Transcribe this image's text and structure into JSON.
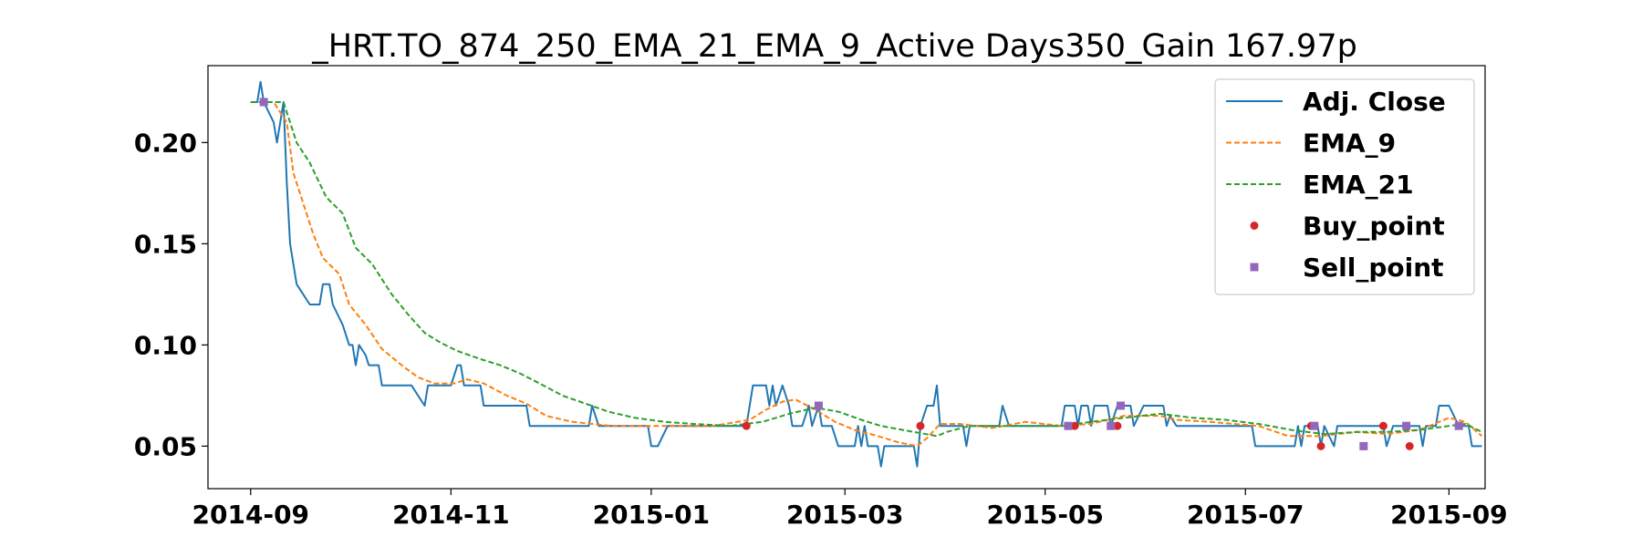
{
  "chart_data": {
    "type": "line",
    "title": "_HRT.TO_874_250_EMA_21_EMA_9_Active Days350_Gain 167.97p",
    "xlabel": "",
    "ylabel": "",
    "xlim": [
      "2014-08-19",
      "2015-09-12"
    ],
    "ylim": [
      0.029,
      0.238
    ],
    "x_ticks": [
      "2014-09-01",
      "2014-11-01",
      "2015-01-01",
      "2015-03-01",
      "2015-05-01",
      "2015-07-01",
      "2015-09-01"
    ],
    "x_tick_labels": [
      "2014-09",
      "2014-11",
      "2015-01",
      "2015-03",
      "2015-05",
      "2015-07",
      "2015-09"
    ],
    "y_ticks": [
      0.05,
      0.1,
      0.15,
      0.2
    ],
    "y_tick_labels": [
      "0.05",
      "0.10",
      "0.15",
      "0.20"
    ],
    "grid": false,
    "legend_position": "top-right",
    "colors": {
      "adj_close": "#1f77b4",
      "ema_9": "#ff7f0e",
      "ema_21": "#2ca02c",
      "buy": "#d62728",
      "sell": "#9467bd"
    },
    "series": [
      {
        "name": "Adj. Close",
        "style": "solid",
        "points": [
          [
            "2014-09-01",
            0.22
          ],
          [
            "2014-09-03",
            0.22
          ],
          [
            "2014-09-04",
            0.23
          ],
          [
            "2014-09-05",
            0.22
          ],
          [
            "2014-09-08",
            0.21
          ],
          [
            "2014-09-09",
            0.2
          ],
          [
            "2014-09-10",
            0.21
          ],
          [
            "2014-09-11",
            0.22
          ],
          [
            "2014-09-12",
            0.18
          ],
          [
            "2014-09-13",
            0.15
          ],
          [
            "2014-09-15",
            0.13
          ],
          [
            "2014-09-17",
            0.125
          ],
          [
            "2014-09-19",
            0.12
          ],
          [
            "2014-09-22",
            0.12
          ],
          [
            "2014-09-23",
            0.13
          ],
          [
            "2014-09-25",
            0.13
          ],
          [
            "2014-09-26",
            0.12
          ],
          [
            "2014-09-29",
            0.11
          ],
          [
            "2014-10-01",
            0.1
          ],
          [
            "2014-10-02",
            0.1
          ],
          [
            "2014-10-03",
            0.09
          ],
          [
            "2014-10-04",
            0.1
          ],
          [
            "2014-10-06",
            0.095
          ],
          [
            "2014-10-07",
            0.09
          ],
          [
            "2014-10-10",
            0.09
          ],
          [
            "2014-10-11",
            0.08
          ],
          [
            "2014-10-20",
            0.08
          ],
          [
            "2014-10-24",
            0.07
          ],
          [
            "2014-10-25",
            0.08
          ],
          [
            "2014-11-01",
            0.08
          ],
          [
            "2014-11-03",
            0.09
          ],
          [
            "2014-11-04",
            0.09
          ],
          [
            "2014-11-05",
            0.08
          ],
          [
            "2014-11-10",
            0.08
          ],
          [
            "2014-11-11",
            0.07
          ],
          [
            "2014-11-24",
            0.07
          ],
          [
            "2014-11-25",
            0.06
          ],
          [
            "2014-12-13",
            0.06
          ],
          [
            "2014-12-14",
            0.07
          ],
          [
            "2014-12-16",
            0.06
          ],
          [
            "2014-12-31",
            0.06
          ],
          [
            "2015-01-01",
            0.05
          ],
          [
            "2015-01-03",
            0.05
          ],
          [
            "2015-01-06",
            0.06
          ],
          [
            "2015-01-20",
            0.06
          ],
          [
            "2015-01-30",
            0.06
          ],
          [
            "2015-02-01",
            0.08
          ],
          [
            "2015-02-05",
            0.08
          ],
          [
            "2015-02-06",
            0.07
          ],
          [
            "2015-02-07",
            0.08
          ],
          [
            "2015-02-08",
            0.07
          ],
          [
            "2015-02-10",
            0.08
          ],
          [
            "2015-02-12",
            0.07
          ],
          [
            "2015-02-13",
            0.06
          ],
          [
            "2015-02-16",
            0.06
          ],
          [
            "2015-02-18",
            0.07
          ],
          [
            "2015-02-19",
            0.06
          ],
          [
            "2015-02-21",
            0.07
          ],
          [
            "2015-02-22",
            0.06
          ],
          [
            "2015-02-25",
            0.06
          ],
          [
            "2015-02-27",
            0.05
          ],
          [
            "2015-03-04",
            0.05
          ],
          [
            "2015-03-05",
            0.06
          ],
          [
            "2015-03-06",
            0.05
          ],
          [
            "2015-03-07",
            0.06
          ],
          [
            "2015-03-08",
            0.05
          ],
          [
            "2015-03-11",
            0.05
          ],
          [
            "2015-03-12",
            0.04
          ],
          [
            "2015-03-13",
            0.05
          ],
          [
            "2015-03-22",
            0.05
          ],
          [
            "2015-03-23",
            0.04
          ],
          [
            "2015-03-24",
            0.06
          ],
          [
            "2015-03-26",
            0.07
          ],
          [
            "2015-03-28",
            0.07
          ],
          [
            "2015-03-29",
            0.08
          ],
          [
            "2015-03-30",
            0.06
          ],
          [
            "2015-04-06",
            0.06
          ],
          [
            "2015-04-07",
            0.05
          ],
          [
            "2015-04-08",
            0.06
          ],
          [
            "2015-04-17",
            0.06
          ],
          [
            "2015-04-18",
            0.07
          ],
          [
            "2015-04-20",
            0.06
          ],
          [
            "2015-05-06",
            0.06
          ],
          [
            "2015-05-07",
            0.07
          ],
          [
            "2015-05-10",
            0.07
          ],
          [
            "2015-05-11",
            0.06
          ],
          [
            "2015-05-12",
            0.07
          ],
          [
            "2015-05-14",
            0.07
          ],
          [
            "2015-05-15",
            0.06
          ],
          [
            "2015-05-16",
            0.07
          ],
          [
            "2015-05-20",
            0.07
          ],
          [
            "2015-05-21",
            0.06
          ],
          [
            "2015-05-23",
            0.07
          ],
          [
            "2015-05-27",
            0.07
          ],
          [
            "2015-05-28",
            0.06
          ],
          [
            "2015-05-31",
            0.07
          ],
          [
            "2015-06-06",
            0.07
          ],
          [
            "2015-06-07",
            0.06
          ],
          [
            "2015-06-08",
            0.065
          ],
          [
            "2015-06-10",
            0.06
          ],
          [
            "2015-07-03",
            0.06
          ],
          [
            "2015-07-04",
            0.05
          ],
          [
            "2015-07-16",
            0.05
          ],
          [
            "2015-07-17",
            0.06
          ],
          [
            "2015-07-18",
            0.05
          ],
          [
            "2015-07-19",
            0.06
          ],
          [
            "2015-07-23",
            0.06
          ],
          [
            "2015-07-24",
            0.05
          ],
          [
            "2015-07-25",
            0.06
          ],
          [
            "2015-07-28",
            0.05
          ],
          [
            "2015-07-29",
            0.06
          ],
          [
            "2015-08-12",
            0.06
          ],
          [
            "2015-08-13",
            0.05
          ],
          [
            "2015-08-15",
            0.06
          ],
          [
            "2015-08-23",
            0.06
          ],
          [
            "2015-08-24",
            0.05
          ],
          [
            "2015-08-25",
            0.06
          ],
          [
            "2015-08-28",
            0.06
          ],
          [
            "2015-08-29",
            0.07
          ],
          [
            "2015-09-01",
            0.07
          ],
          [
            "2015-09-04",
            0.06
          ],
          [
            "2015-09-07",
            0.06
          ],
          [
            "2015-09-08",
            0.05
          ],
          [
            "2015-09-11",
            0.05
          ]
        ]
      },
      {
        "name": "EMA_9",
        "style": "dashed",
        "points": [
          [
            "2014-09-01",
            0.22
          ],
          [
            "2014-09-08",
            0.22
          ],
          [
            "2014-09-12",
            0.21
          ],
          [
            "2014-09-14",
            0.185
          ],
          [
            "2014-09-17",
            0.17
          ],
          [
            "2014-09-20",
            0.155
          ],
          [
            "2014-09-23",
            0.143
          ],
          [
            "2014-09-28",
            0.135
          ],
          [
            "2014-10-01",
            0.12
          ],
          [
            "2014-10-06",
            0.11
          ],
          [
            "2014-10-11",
            0.098
          ],
          [
            "2014-10-17",
            0.09
          ],
          [
            "2014-10-22",
            0.084
          ],
          [
            "2014-10-27",
            0.081
          ],
          [
            "2014-11-02",
            0.081
          ],
          [
            "2014-11-06",
            0.083
          ],
          [
            "2014-11-11",
            0.081
          ],
          [
            "2014-11-18",
            0.075
          ],
          [
            "2014-11-24",
            0.071
          ],
          [
            "2014-11-30",
            0.065
          ],
          [
            "2014-12-08",
            0.062
          ],
          [
            "2014-12-14",
            0.061
          ],
          [
            "2014-12-20",
            0.06
          ],
          [
            "2015-01-10",
            0.06
          ],
          [
            "2015-01-20",
            0.06
          ],
          [
            "2015-01-31",
            0.063
          ],
          [
            "2015-02-05",
            0.068
          ],
          [
            "2015-02-10",
            0.072
          ],
          [
            "2015-02-14",
            0.073
          ],
          [
            "2015-02-20",
            0.068
          ],
          [
            "2015-02-26",
            0.062
          ],
          [
            "2015-03-04",
            0.058
          ],
          [
            "2015-03-11",
            0.055
          ],
          [
            "2015-03-17",
            0.052
          ],
          [
            "2015-03-23",
            0.05
          ],
          [
            "2015-03-26",
            0.054
          ],
          [
            "2015-03-30",
            0.061
          ],
          [
            "2015-04-05",
            0.061
          ],
          [
            "2015-04-15",
            0.059
          ],
          [
            "2015-04-25",
            0.062
          ],
          [
            "2015-05-06",
            0.06
          ],
          [
            "2015-05-15",
            0.061
          ],
          [
            "2015-05-25",
            0.065
          ],
          [
            "2015-06-05",
            0.065
          ],
          [
            "2015-06-10",
            0.063
          ],
          [
            "2015-06-20",
            0.062
          ],
          [
            "2015-07-05",
            0.06
          ],
          [
            "2015-07-14",
            0.055
          ],
          [
            "2015-07-24",
            0.055
          ],
          [
            "2015-08-04",
            0.057
          ],
          [
            "2015-08-13",
            0.056
          ],
          [
            "2015-08-23",
            0.058
          ],
          [
            "2015-09-01",
            0.064
          ],
          [
            "2015-09-06",
            0.062
          ],
          [
            "2015-09-11",
            0.055
          ]
        ]
      },
      {
        "name": "EMA_21",
        "style": "dashed",
        "points": [
          [
            "2014-09-01",
            0.22
          ],
          [
            "2014-09-11",
            0.22
          ],
          [
            "2014-09-15",
            0.2
          ],
          [
            "2014-09-19",
            0.19
          ],
          [
            "2014-09-24",
            0.173
          ],
          [
            "2014-09-29",
            0.165
          ],
          [
            "2014-10-03",
            0.148
          ],
          [
            "2014-10-08",
            0.14
          ],
          [
            "2014-10-14",
            0.125
          ],
          [
            "2014-10-19",
            0.115
          ],
          [
            "2014-10-24",
            0.106
          ],
          [
            "2014-10-29",
            0.101
          ],
          [
            "2014-11-03",
            0.097
          ],
          [
            "2014-11-10",
            0.093
          ],
          [
            "2014-11-16",
            0.09
          ],
          [
            "2014-11-22",
            0.086
          ],
          [
            "2014-11-28",
            0.081
          ],
          [
            "2014-12-05",
            0.075
          ],
          [
            "2014-12-12",
            0.071
          ],
          [
            "2014-12-19",
            0.067
          ],
          [
            "2014-12-27",
            0.064
          ],
          [
            "2015-01-05",
            0.062
          ],
          [
            "2015-01-14",
            0.061
          ],
          [
            "2015-01-25",
            0.06
          ],
          [
            "2015-02-04",
            0.062
          ],
          [
            "2015-02-12",
            0.066
          ],
          [
            "2015-02-20",
            0.069
          ],
          [
            "2015-02-27",
            0.067
          ],
          [
            "2015-03-06",
            0.063
          ],
          [
            "2015-03-12",
            0.06
          ],
          [
            "2015-03-22",
            0.057
          ],
          [
            "2015-03-29",
            0.055
          ],
          [
            "2015-04-01",
            0.057
          ],
          [
            "2015-04-08",
            0.06
          ],
          [
            "2015-04-20",
            0.06
          ],
          [
            "2015-05-06",
            0.06
          ],
          [
            "2015-05-15",
            0.062
          ],
          [
            "2015-05-25",
            0.064
          ],
          [
            "2015-06-05",
            0.066
          ],
          [
            "2015-06-15",
            0.064
          ],
          [
            "2015-06-25",
            0.063
          ],
          [
            "2015-07-05",
            0.061
          ],
          [
            "2015-07-15",
            0.058
          ],
          [
            "2015-07-25",
            0.056
          ],
          [
            "2015-08-04",
            0.057
          ],
          [
            "2015-08-13",
            0.057
          ],
          [
            "2015-08-23",
            0.058
          ],
          [
            "2015-09-01",
            0.06
          ],
          [
            "2015-09-06",
            0.061
          ],
          [
            "2015-09-11",
            0.057
          ]
        ]
      }
    ],
    "markers": [
      {
        "name": "Buy_point",
        "shape": "circle",
        "points": [
          [
            "2015-01-30",
            0.06
          ],
          [
            "2015-03-24",
            0.06
          ],
          [
            "2015-05-10",
            0.06
          ],
          [
            "2015-05-23",
            0.06
          ],
          [
            "2015-07-21",
            0.06
          ],
          [
            "2015-07-24",
            0.05
          ],
          [
            "2015-08-12",
            0.06
          ],
          [
            "2015-08-20",
            0.05
          ]
        ]
      },
      {
        "name": "Sell_point",
        "shape": "square",
        "points": [
          [
            "2014-09-05",
            0.22
          ],
          [
            "2015-02-21",
            0.07
          ],
          [
            "2015-05-08",
            0.06
          ],
          [
            "2015-05-21",
            0.06
          ],
          [
            "2015-05-24",
            0.07
          ],
          [
            "2015-07-22",
            0.06
          ],
          [
            "2015-08-06",
            0.05
          ],
          [
            "2015-08-19",
            0.06
          ],
          [
            "2015-09-04",
            0.06
          ]
        ]
      }
    ]
  }
}
